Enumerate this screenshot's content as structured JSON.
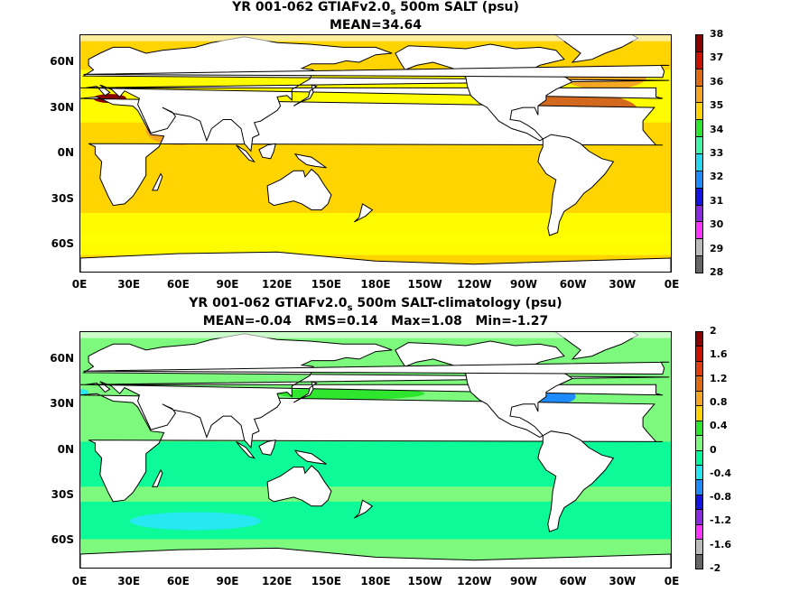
{
  "panels": [
    {
      "title_pre": "YR 001-062 GTIAFv2.0",
      "title_sub": "s",
      "title_post": " 500m SALT (psu)",
      "stats": "MEAN=34.64",
      "ocean_color": "#ffd400",
      "colorbar": {
        "labels": [
          "38",
          "37",
          "36",
          "35",
          "34",
          "33",
          "32",
          "31",
          "30",
          "29",
          "28"
        ],
        "colors": [
          "#8b0000",
          "#cc1100",
          "#e06a10",
          "#f5a623",
          "#ffd400",
          "#2ee62e",
          "#40f5a8",
          "#26d8f0",
          "#1e8cff",
          "#1414e6",
          "#8a2be2",
          "#ff33ff",
          "#bbbbbb",
          "#666666"
        ]
      }
    },
    {
      "title_pre": "YR 001-062 GTIAFv2.0",
      "title_sub": "s",
      "title_post": " 500m SALT-climatology (psu)",
      "stats": "MEAN=-0.04   RMS=0.14   Max=1.08   Min=-1.27",
      "ocean_color": "#7dfa7d",
      "colorbar": {
        "labels": [
          "2",
          "1.6",
          "1.2",
          "0.8",
          "0.4",
          "0",
          "-0.4",
          "-0.8",
          "-1.2",
          "-1.6",
          "-2"
        ],
        "colors": [
          "#8b0000",
          "#cc1100",
          "#e03c10",
          "#e06a10",
          "#f5a623",
          "#ffd400",
          "#2ee62e",
          "#7dfa7d",
          "#00fa9a",
          "#26e8f0",
          "#1e8cff",
          "#1414e6",
          "#8a2be2",
          "#ff33ff",
          "#bbbbbb",
          "#666666"
        ]
      }
    }
  ],
  "axes": {
    "lat_labels": [
      "60N",
      "30N",
      "0N",
      "30S",
      "60S"
    ],
    "lon_labels": [
      "0E",
      "30E",
      "60E",
      "90E",
      "120E",
      "150E",
      "180E",
      "150W",
      "120W",
      "90W",
      "60W",
      "30W",
      "0E"
    ]
  }
}
